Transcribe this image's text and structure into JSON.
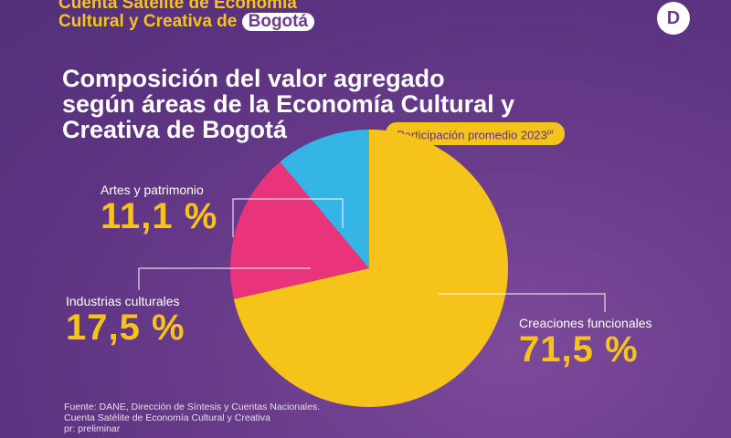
{
  "header": {
    "brand_line1": "Cuenta Satélite de Economía",
    "brand_line2_prefix": "Cultural y Creativa de",
    "brand_highlight": "Bogotá",
    "logo_letter": "D"
  },
  "chart_data": {
    "type": "pie",
    "title_lines": [
      "Composición del valor agregado",
      "según áreas de la Economía Cultural y",
      "Creativa de Bogotá"
    ],
    "subtitle": "Participación promedio 2023",
    "subtitle_sup": "pr",
    "slices": [
      {
        "label": "Creaciones funcionales",
        "value": 71.5,
        "display": "71,5 %",
        "color": "#f6c31a"
      },
      {
        "label": "Industrias culturales",
        "value": 17.5,
        "display": "17,5 %",
        "color": "#e9337a"
      },
      {
        "label": "Artes y patrimonio",
        "value": 11.1,
        "display": "11,1 %",
        "color": "#35b5e5"
      }
    ]
  },
  "footer": {
    "lines": [
      "Fuente: DANE, Dirección de Síntesis y Cuentas Nacionales.",
      "Cuenta Satélite de Economía Cultural y Creativa",
      "pr: preliminar"
    ]
  }
}
